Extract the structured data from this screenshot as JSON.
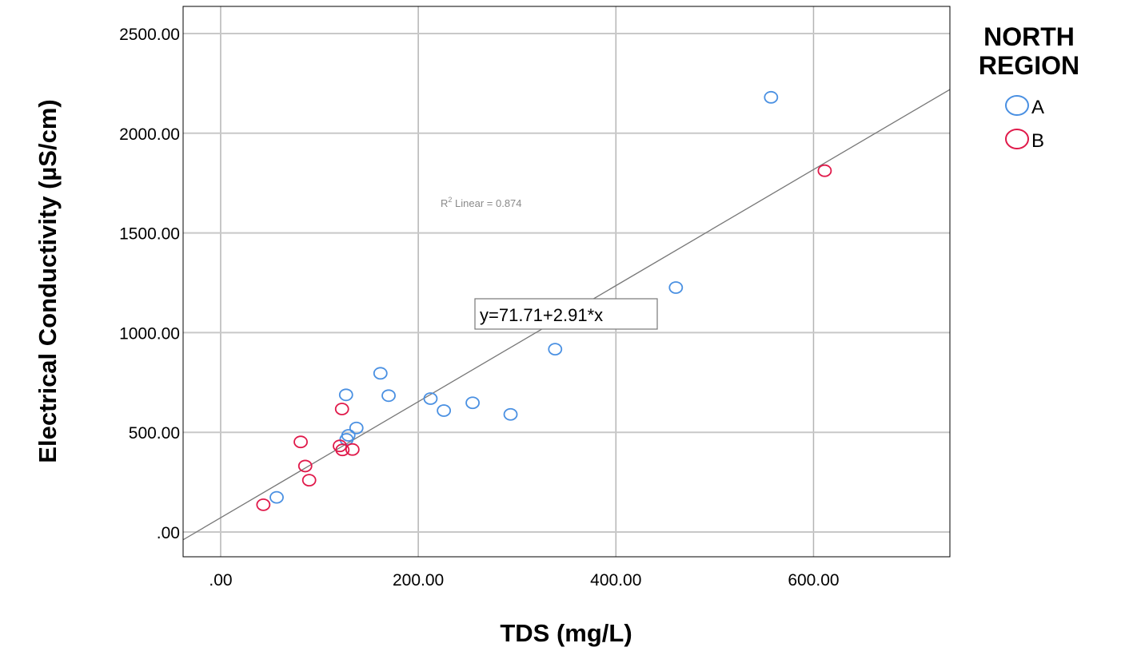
{
  "chart_data": {
    "type": "scatter",
    "xlabel": "TDS (mg/L)",
    "ylabel": "Electrical Conductivity (µS/cm)",
    "xlim": [
      -38,
      738
    ],
    "ylim": [
      -124,
      2636
    ],
    "xticks": [
      0,
      200,
      400,
      600
    ],
    "xtick_labels": [
      ".00",
      "200.00",
      "400.00",
      "600.00"
    ],
    "yticks": [
      0,
      500,
      1000,
      1500,
      2000,
      2500
    ],
    "ytick_labels": [
      ".00",
      "500.00",
      "1000.00",
      "1500.00",
      "2000.00",
      "2500.00"
    ],
    "grid": true,
    "legend": {
      "title_lines": [
        "NORTH",
        "REGION"
      ],
      "placement": "right"
    },
    "series": [
      {
        "name": "A",
        "color": "#4a90e2",
        "points": [
          [
            161.7,
            796
          ],
          [
            126.9,
            688
          ],
          [
            170,
            684
          ],
          [
            212.4,
            669
          ],
          [
            225.9,
            609
          ],
          [
            255,
            648
          ],
          [
            293.4,
            590
          ],
          [
            137.4,
            522
          ],
          [
            129.3,
            485
          ],
          [
            127.4,
            465
          ],
          [
            56.7,
            174
          ],
          [
            338.5,
            917
          ],
          [
            460.7,
            1226
          ],
          [
            557,
            2180
          ]
        ]
      },
      {
        "name": "B",
        "color": "#e0194a",
        "points": [
          [
            122.8,
            617
          ],
          [
            81,
            452
          ],
          [
            85.6,
            331
          ],
          [
            89.6,
            260
          ],
          [
            43.2,
            137
          ],
          [
            120.6,
            432
          ],
          [
            123.3,
            412
          ],
          [
            133.4,
            414
          ],
          [
            611.3,
            1812
          ]
        ]
      }
    ],
    "fit": {
      "intercept": 71.71,
      "slope": 2.91,
      "equation_label": "y=71.71+2.91*x",
      "r2_label_prefix": "R",
      "r2_label_suffix": " Linear = 0.874"
    }
  }
}
